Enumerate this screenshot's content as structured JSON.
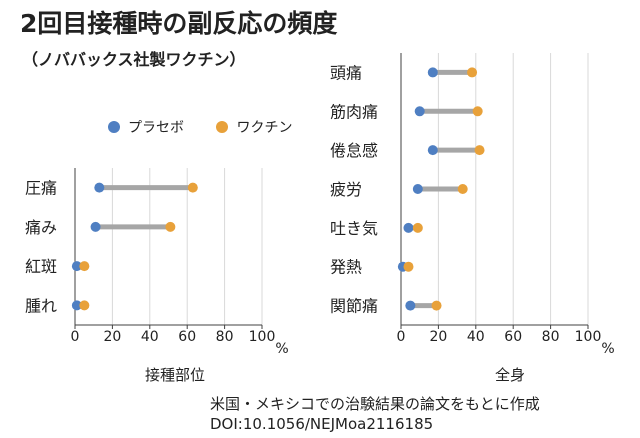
{
  "title": "2回目接種時の副反応の頻度",
  "subtitle": "（ノババックス社製ワクチン）",
  "legend": {
    "placebo_label": "プラセボ",
    "vaccine_label": "ワクチン"
  },
  "colors": {
    "placebo": "#4f7fc2",
    "vaccine": "#e8a13a",
    "connector": "#a6a6a6",
    "grid": "#d9d9d9",
    "axis": "#404040"
  },
  "source": {
    "line1": "米国・メキシコでの治験結果の論文をもとに作成",
    "line2": "DOI:10.1056/NEJMoa2116185"
  },
  "chart_data": [
    {
      "type": "dumbbell",
      "xlabel": "接種部位",
      "unit": "%",
      "xlim": [
        0,
        100
      ],
      "xticks": [
        0,
        20,
        40,
        60,
        80,
        100
      ],
      "grid": true,
      "categories": [
        "圧痛",
        "痛み",
        "紅斑",
        "腫れ"
      ],
      "series": [
        {
          "name": "プラセボ",
          "values": [
            13,
            11,
            1,
            1
          ]
        },
        {
          "name": "ワクチン",
          "values": [
            63,
            51,
            5,
            5
          ]
        }
      ]
    },
    {
      "type": "dumbbell",
      "xlabel": "全身",
      "unit": "%",
      "xlim": [
        0,
        100
      ],
      "xticks": [
        0,
        20,
        40,
        60,
        80,
        100
      ],
      "grid": true,
      "categories": [
        "頭痛",
        "筋肉痛",
        "倦怠感",
        "疲労",
        "吐き気",
        "発熱",
        "関節痛"
      ],
      "series": [
        {
          "name": "プラセボ",
          "values": [
            17,
            10,
            17,
            9,
            4,
            1,
            5
          ]
        },
        {
          "name": "ワクチン",
          "values": [
            38,
            41,
            42,
            33,
            9,
            4,
            19
          ]
        }
      ]
    }
  ]
}
